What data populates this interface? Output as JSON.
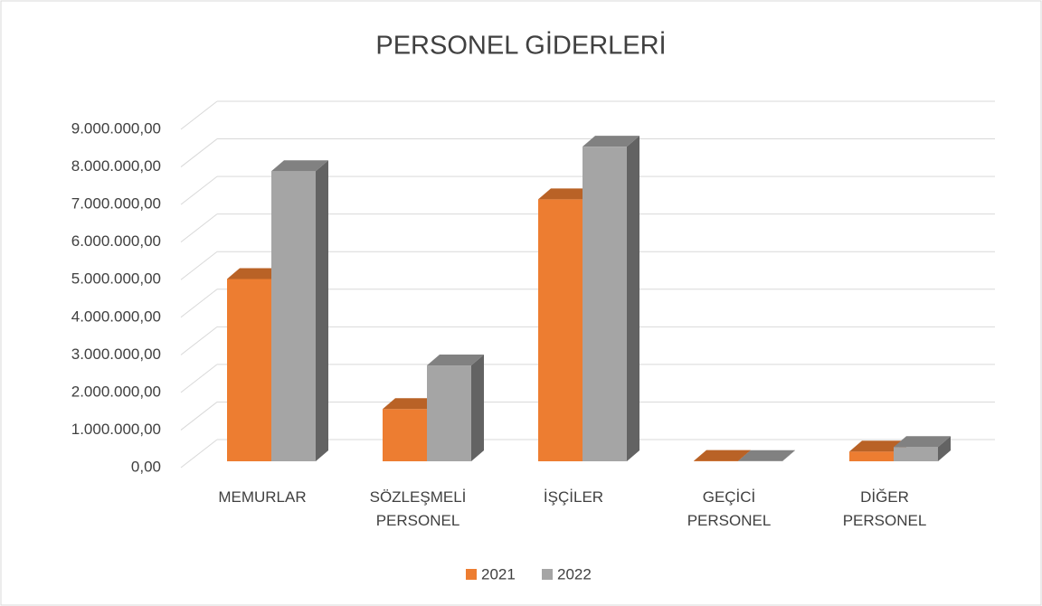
{
  "chart_data": {
    "type": "bar3d",
    "title": "PERSONEL GİDERLERİ",
    "categories": [
      "MEMURLAR",
      "SÖZLEŞMELİ PERSONEL",
      "İŞÇİLER",
      "GEÇİCİ PERSONEL",
      "DİĞER PERSONEL"
    ],
    "series": [
      {
        "name": "2021",
        "color": "#ed7d31",
        "values": [
          4850000,
          1390000,
          6970000,
          10000,
          260000
        ]
      },
      {
        "name": "2022",
        "color": "#a5a5a5",
        "values": [
          7720000,
          2550000,
          8370000,
          5000,
          380000
        ]
      }
    ],
    "ylim": [
      0,
      9000000
    ],
    "yticks": [
      {
        "value": 0,
        "label": "0,00"
      },
      {
        "value": 1000000,
        "label": "1.000.000,00"
      },
      {
        "value": 2000000,
        "label": "2.000.000,00"
      },
      {
        "value": 3000000,
        "label": "3.000.000,00"
      },
      {
        "value": 4000000,
        "label": "4.000.000,00"
      },
      {
        "value": 5000000,
        "label": "5.000.000,00"
      },
      {
        "value": 6000000,
        "label": "6.000.000,00"
      },
      {
        "value": 7000000,
        "label": "7.000.000,00"
      },
      {
        "value": 8000000,
        "label": "8.000.000,00"
      },
      {
        "value": 9000000,
        "label": "9.000.000,00"
      }
    ],
    "grid": true,
    "legend": "bottom"
  }
}
